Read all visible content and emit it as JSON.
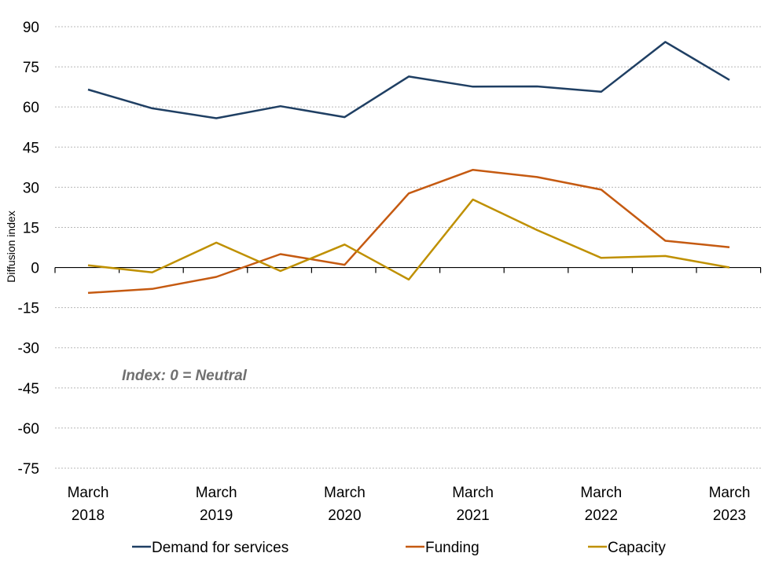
{
  "chart_data": {
    "type": "line",
    "title": "",
    "xlabel": "",
    "ylabel": "Diffusion index",
    "ylim": [
      -75,
      90
    ],
    "yticks": [
      "90",
      "75",
      "60",
      "45",
      "30",
      "15",
      "0",
      "-15",
      "-30",
      "-45",
      "-60",
      "-75"
    ],
    "x_tick_labels": [
      {
        "line1": "March",
        "line2": "2018"
      },
      {
        "line1": "March",
        "line2": "2019"
      },
      {
        "line1": "March",
        "line2": "2020"
      },
      {
        "line1": "March",
        "line2": "2021"
      },
      {
        "line1": "March",
        "line2": "2022"
      },
      {
        "line1": "March",
        "line2": "2023"
      }
    ],
    "points_per_series": 11,
    "grid": true,
    "annotation": "Index: 0 = Neutral",
    "legend_position": "bottom",
    "series": [
      {
        "name": "Demand for services",
        "color": "#1f3f63",
        "values": [
          66.5,
          59.5,
          55.8,
          60.3,
          56.2,
          71.4,
          67.6,
          67.7,
          65.7,
          84.3,
          70.1
        ]
      },
      {
        "name": "Funding",
        "color": "#c55a11",
        "values": [
          -9.5,
          -8.0,
          -3.5,
          5.0,
          1.0,
          27.7,
          36.5,
          33.8,
          29.1,
          10.0,
          7.6
        ]
      },
      {
        "name": "Capacity",
        "color": "#bf9000",
        "values": [
          0.8,
          -1.8,
          9.3,
          -1.3,
          8.6,
          -4.5,
          25.4,
          14.0,
          3.6,
          4.3,
          0.0
        ]
      }
    ]
  }
}
